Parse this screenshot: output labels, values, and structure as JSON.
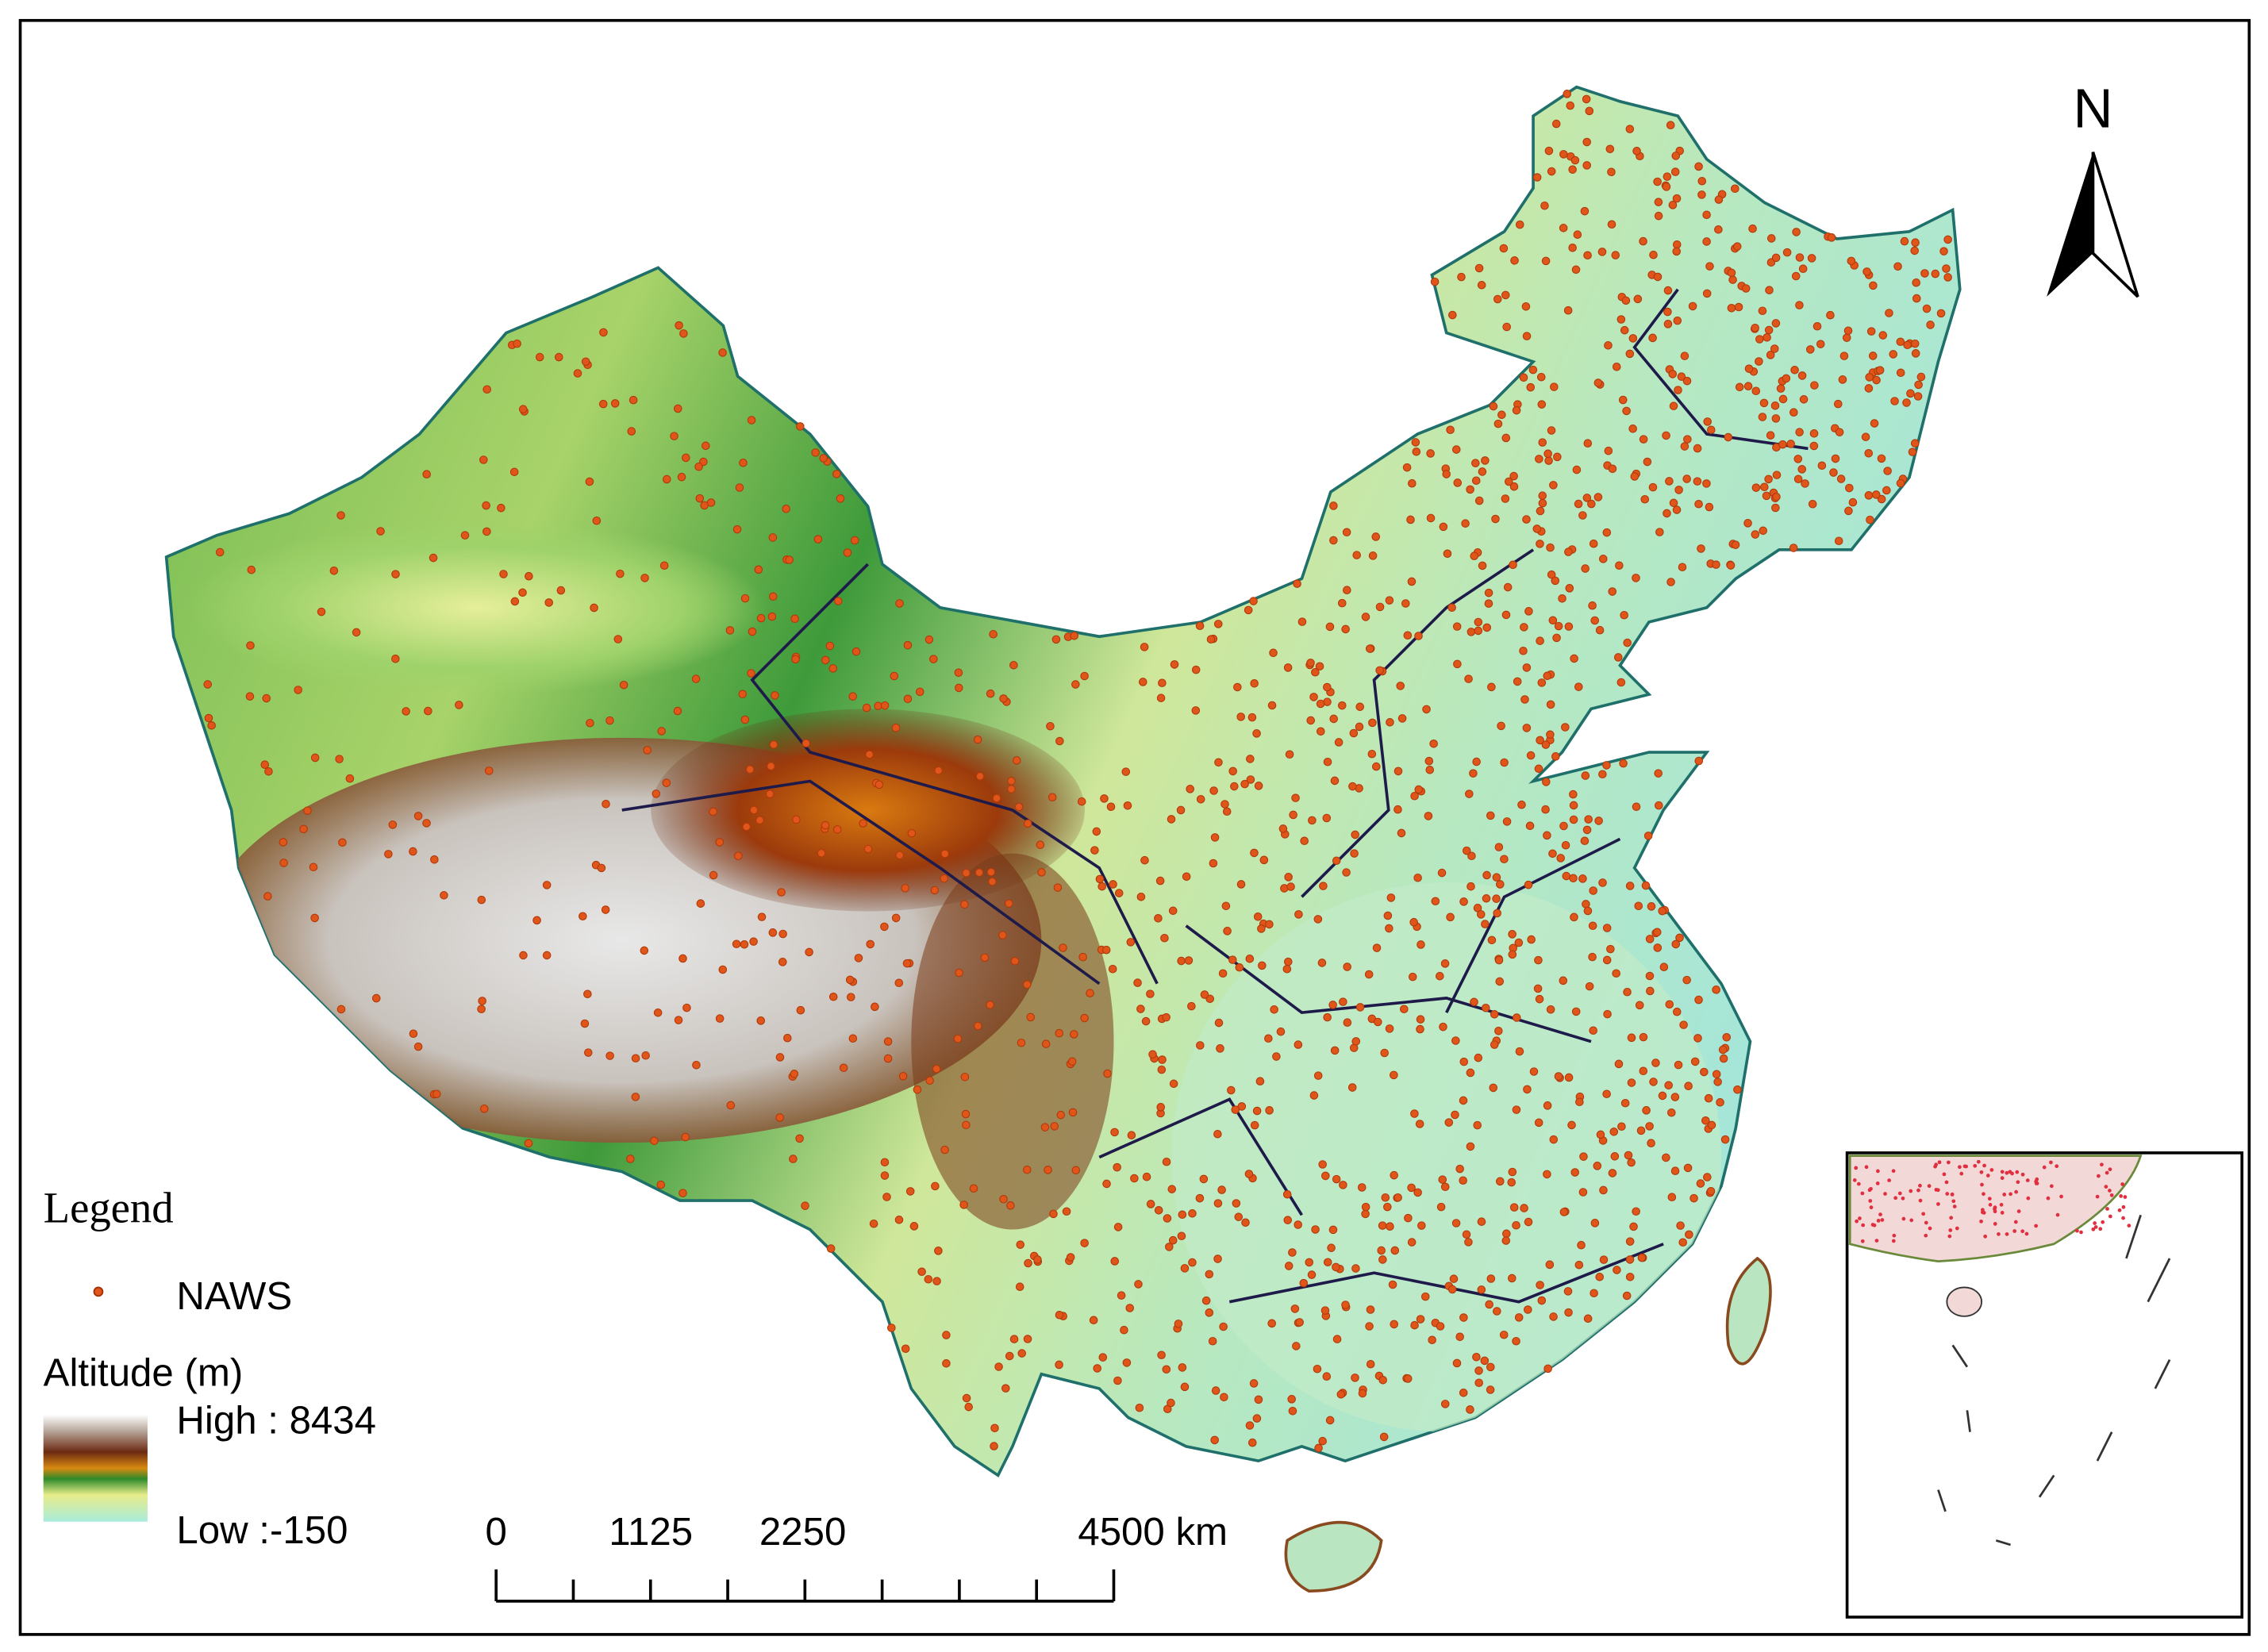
{
  "legend": {
    "title": "Legend",
    "station_label": "NAWS",
    "altitude_title": "Altitude (m)",
    "high_label": "High : 8434",
    "low_label": "Low :-150"
  },
  "scale_bar": {
    "labels": [
      "0",
      "1125",
      "2250",
      "4500 km"
    ]
  },
  "north_arrow": {
    "label": "N"
  }
}
